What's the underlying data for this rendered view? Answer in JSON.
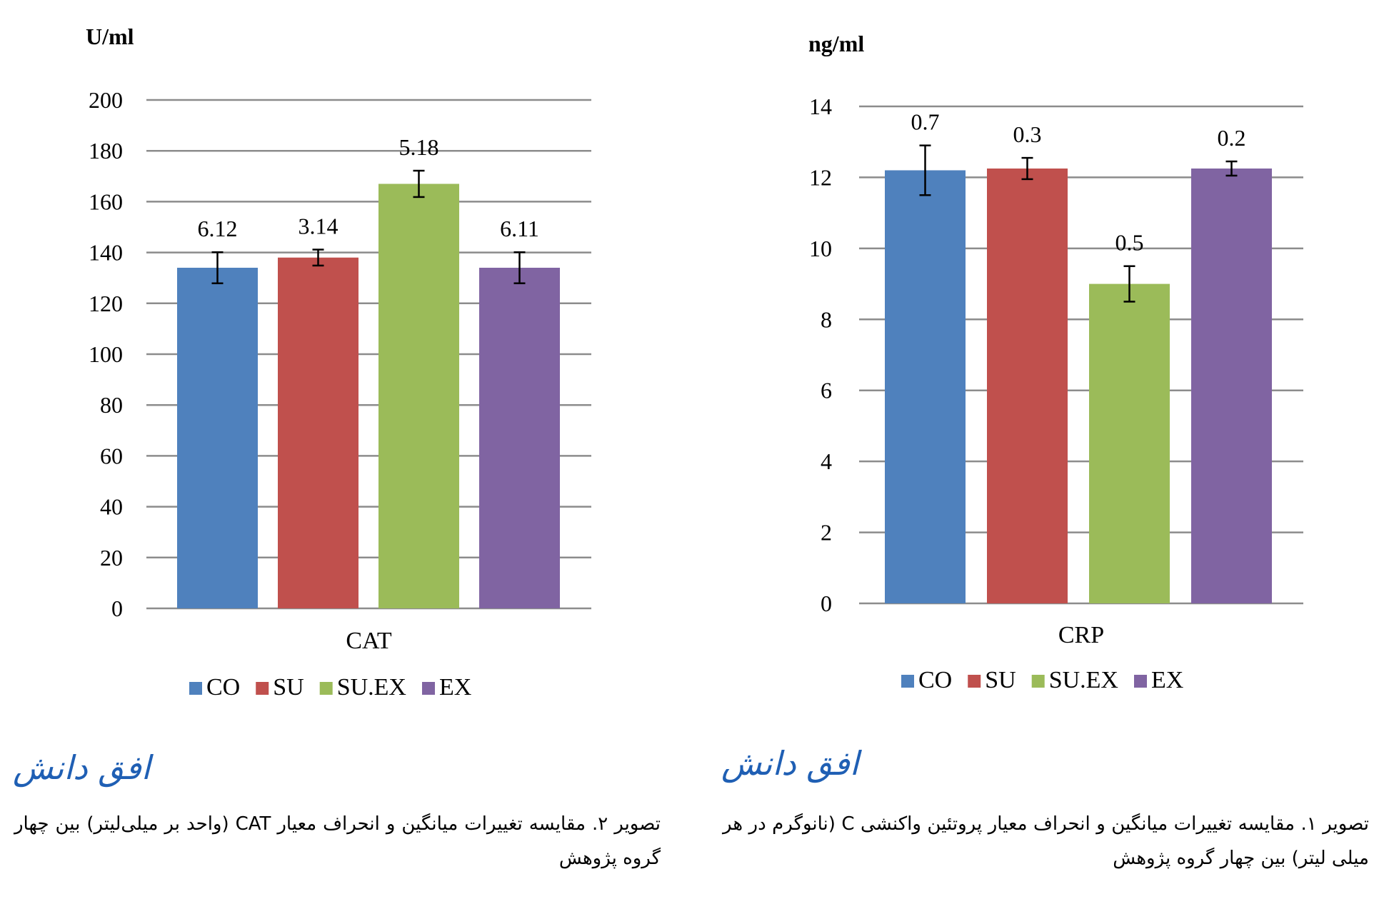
{
  "chart_data": [
    {
      "type": "bar",
      "title": "",
      "ylabel": "U/ml",
      "xlabel": "CAT",
      "categories": [
        "CAT"
      ],
      "ylim": [
        0,
        200
      ],
      "yticks": [
        0,
        20,
        40,
        60,
        80,
        100,
        120,
        140,
        160,
        180,
        200
      ],
      "grid": true,
      "legend_position": "bottom",
      "series": [
        {
          "name": "CO",
          "values": [
            134
          ],
          "error": [
            6.12
          ],
          "label": "6.12",
          "color": "#4f81bd"
        },
        {
          "name": "SU",
          "values": [
            138
          ],
          "error": [
            3.14
          ],
          "label": "3.14",
          "color": "#c0504d"
        },
        {
          "name": "SU.EX",
          "values": [
            167
          ],
          "error": [
            5.18
          ],
          "label": "5.18",
          "color": "#9bbb59"
        },
        {
          "name": "EX",
          "values": [
            134
          ],
          "error": [
            6.11
          ],
          "label": "6.11",
          "color": "#8064a2"
        }
      ]
    },
    {
      "type": "bar",
      "title": "",
      "ylabel": "ng/ml",
      "xlabel": "CRP",
      "categories": [
        "CRP"
      ],
      "ylim": [
        0,
        14
      ],
      "yticks": [
        0,
        2,
        4,
        6,
        8,
        10,
        12,
        14
      ],
      "grid": true,
      "legend_position": "bottom",
      "series": [
        {
          "name": "CO",
          "values": [
            12.2
          ],
          "error": [
            0.7
          ],
          "label": "0.7",
          "color": "#4f81bd"
        },
        {
          "name": "SU",
          "values": [
            12.25
          ],
          "error": [
            0.3
          ],
          "label": "0.3",
          "color": "#c0504d"
        },
        {
          "name": "SU.EX",
          "values": [
            9.0
          ],
          "error": [
            0.5
          ],
          "label": "0.5",
          "color": "#9bbb59"
        },
        {
          "name": "EX",
          "values": [
            12.25
          ],
          "error": [
            0.2
          ],
          "label": "0.2",
          "color": "#8064a2"
        }
      ]
    }
  ],
  "logos": {
    "left": "افق دانش",
    "right": "افق دانش"
  },
  "captions": {
    "left": "تصویر ۲. مقایسه تغییرات میانگین و انحراف معیار CAT (واحد بر میلی‌لیتر) بین چهار گروه پژوهش",
    "right": "تصویر ۱. مقایسه تغییرات میانگین و انحراف معیار پروتئین واکنشی C (نانوگرم در هر میلی لیتر) بین چهار گروه پژوهش"
  }
}
